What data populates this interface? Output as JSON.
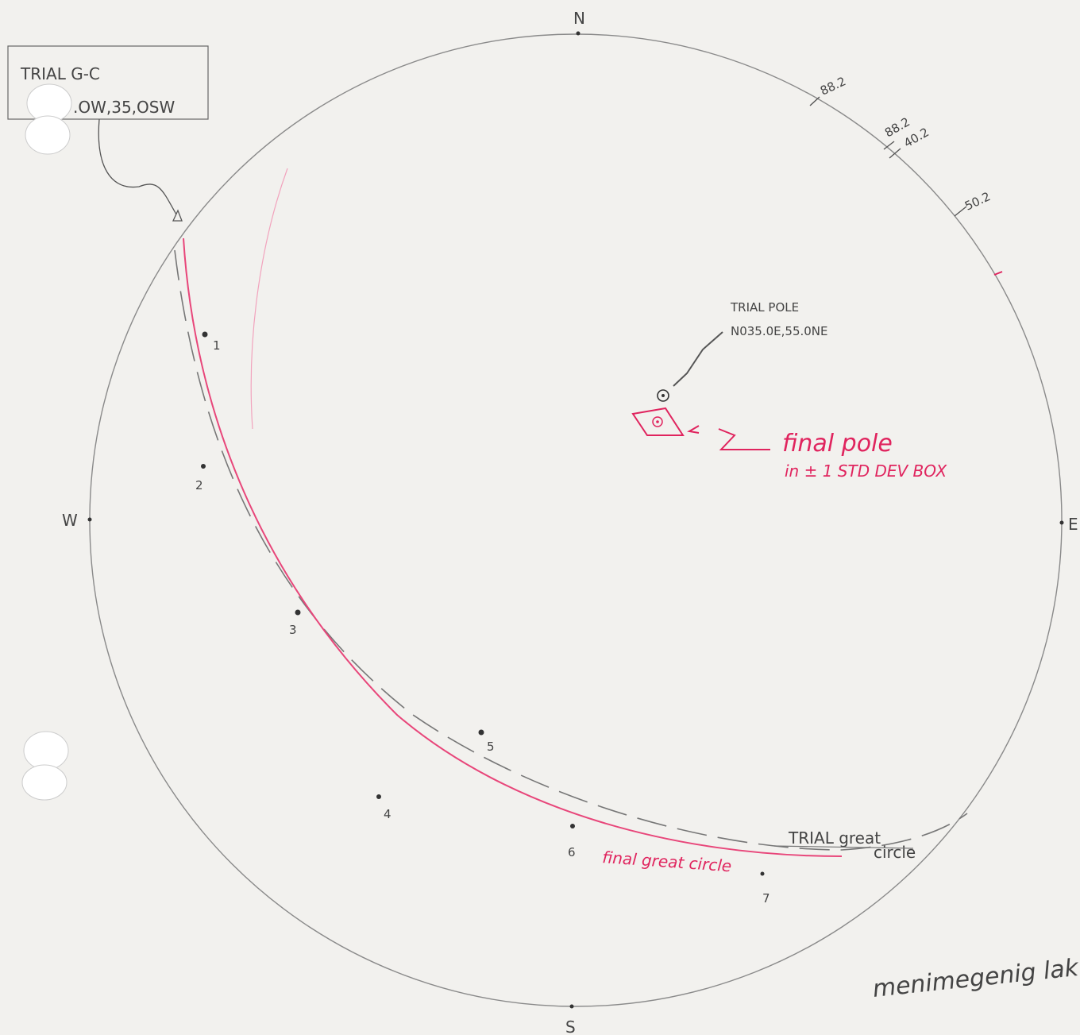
{
  "compass": {
    "north": "N",
    "south": "S",
    "east": "E",
    "west": "W"
  },
  "trial_gc_box": {
    "title": "TRIAL G-C",
    "value": ".OW,35,OSW"
  },
  "rim_labels": [
    "88.2",
    "88.2",
    "40.2",
    "50.2"
  ],
  "trial_pole": {
    "title": "TRIAL POLE",
    "value": "N035.0E,55.0NE"
  },
  "final_pole": {
    "line1": "final pole",
    "line2": "in ± 1 STD DEV BOX"
  },
  "points": [
    "1",
    "2",
    "3",
    "4",
    "5",
    "6",
    "7"
  ],
  "trial_great_circle": {
    "line1": "TRIAL great",
    "line2": "circle"
  },
  "final_great_circle": "final great circle",
  "note": "menimegenig lak"
}
